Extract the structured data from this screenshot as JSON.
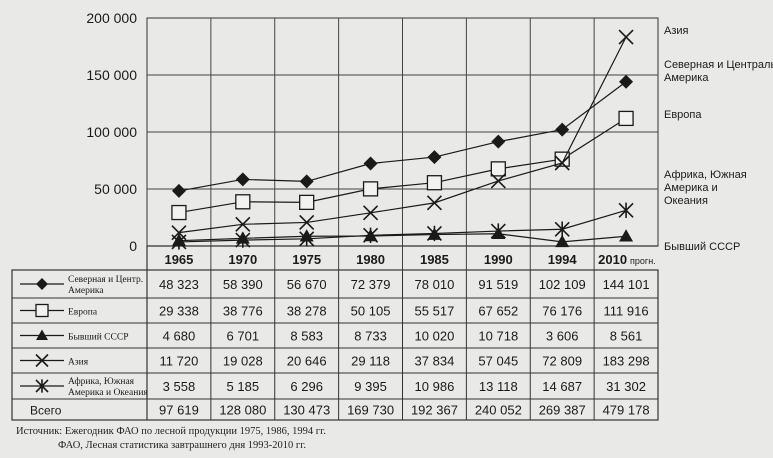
{
  "chart_data": {
    "type": "line",
    "x": [
      "1965",
      "1970",
      "1975",
      "1980",
      "1985",
      "1990",
      "1994",
      "2010"
    ],
    "x_suffix_last": "прогн.",
    "ylim": [
      0,
      200000
    ],
    "yticks": [
      "0",
      "50 000",
      "100 000",
      "150 000",
      "200 000"
    ],
    "ytick_values": [
      0,
      50000,
      100000,
      150000,
      200000
    ],
    "grid": true,
    "series": [
      {
        "name": "Северная и Центр. Америка",
        "legend_label": "Северная и Центральная Америка",
        "marker": "diamond",
        "values": [
          48323,
          58390,
          56670,
          72379,
          78010,
          91519,
          102109,
          144101
        ],
        "labels": [
          "48 323",
          "58 390",
          "56 670",
          "72 379",
          "78 010",
          "91 519",
          "102 109",
          "144 101"
        ]
      },
      {
        "name": "Европа",
        "legend_label": "Европа",
        "marker": "square",
        "values": [
          29338,
          38776,
          38278,
          50105,
          55517,
          67652,
          76176,
          111916
        ],
        "labels": [
          "29 338",
          "38 776",
          "38 278",
          "50 105",
          "55 517",
          "67 652",
          "76 176",
          "111 916"
        ]
      },
      {
        "name": "Бывший СССР",
        "legend_label": "Бывший СССР",
        "marker": "triangle",
        "values": [
          4680,
          6701,
          8583,
          8733,
          10020,
          10718,
          3606,
          8561
        ],
        "labels": [
          "4 680",
          "6 701",
          "8 583",
          "8 733",
          "10 020",
          "10 718",
          "3 606",
          "8 561"
        ]
      },
      {
        "name": "Азия",
        "legend_label": "Азия",
        "marker": "x",
        "values": [
          11720,
          19028,
          20646,
          29118,
          37834,
          57045,
          72809,
          183298
        ],
        "labels": [
          "11 720",
          "19 028",
          "20 646",
          "29 118",
          "37 834",
          "57 045",
          "72 809",
          "183 298"
        ]
      },
      {
        "name": "Африка, Южная Америка и Океания",
        "legend_label": "Африка, Южная Америка и Океания",
        "marker": "star",
        "values": [
          3558,
          5185,
          6296,
          9395,
          10986,
          13118,
          14687,
          31302
        ],
        "labels": [
          "3 558",
          "5 185",
          "6 296",
          "9 395",
          "10 986",
          "13 118",
          "14 687",
          "31 302"
        ]
      }
    ],
    "total": {
      "name": "Всего",
      "labels": [
        "97 619",
        "128 080",
        "130 473",
        "169 730",
        "192 367",
        "240 052",
        "269 387",
        "479 178"
      ]
    }
  },
  "source": {
    "line1": "Источник: Ежегодник ФАО по лесной продукции 1975, 1986, 1994 гг.",
    "line2": "ФАО, Лесная статистика завтрашнего дня 1993-2010 гг."
  }
}
